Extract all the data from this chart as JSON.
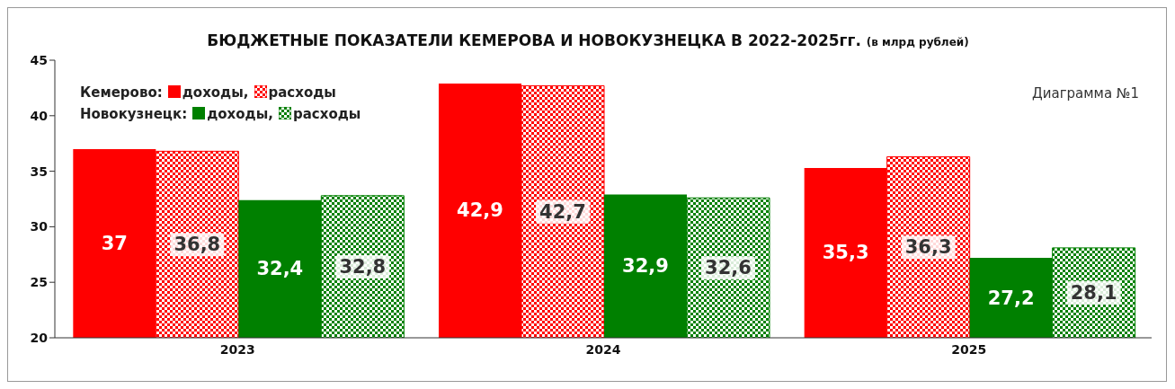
{
  "chart_data": {
    "type": "bar",
    "title": "БЮДЖЕТНЫЕ ПОКАЗАТЕЛИ КЕМЕРОВА И НОВОКУЗНЕЦКА В 2022-2025гг.",
    "subtitle": "(в млрд рублей)",
    "categories": [
      "2023",
      "2024",
      "2025"
    ],
    "series": [
      {
        "name": "доходы,",
        "color": "#ff0000",
        "values": [
          37,
          42.9,
          35.3
        ],
        "value_labels": [
          "37",
          "42,9",
          "35,3"
        ]
      },
      {
        "name": "расходы",
        "color": "#ff0000",
        "values": [
          36.8,
          42.7,
          36.3
        ],
        "value_labels": [
          "36,8",
          "42,7",
          "36,3"
        ]
      },
      {
        "name": "доходы,",
        "color": "#008000",
        "values": [
          32.4,
          32.9,
          27.2
        ],
        "value_labels": [
          "32,4",
          "32,9",
          "27,2"
        ]
      },
      {
        "name": "расходы",
        "color": "#008000",
        "values": [
          32.8,
          32.6,
          28.1
        ],
        "value_labels": [
          "32,8",
          "32,6",
          "28,1"
        ]
      }
    ],
    "annotations": [
      "Кемерово:",
      "Новокузнецк:",
      "Диаграмма №1"
    ],
    "ylim": [
      20,
      45
    ],
    "yticks": [
      20,
      25,
      30,
      35,
      40,
      45
    ],
    "legend": "top left"
  }
}
